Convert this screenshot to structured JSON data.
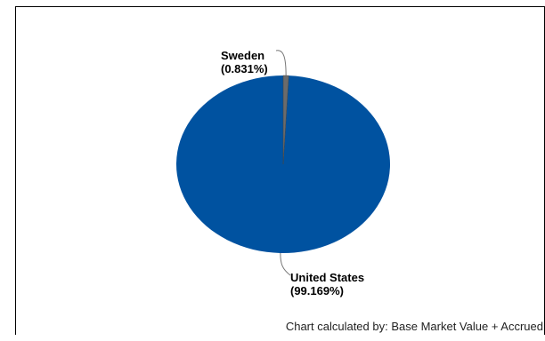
{
  "chart_data": {
    "type": "pie",
    "slices": [
      {
        "label": "United States",
        "value_label": "(99.169%)",
        "value": 99.169,
        "color": "#0052a0"
      },
      {
        "label": "Sweden",
        "value_label": "(0.831%)",
        "value": 0.831,
        "color": "#6b6b6b"
      }
    ],
    "footnote": "Chart calculated by: Base Market Value + Accrued"
  }
}
